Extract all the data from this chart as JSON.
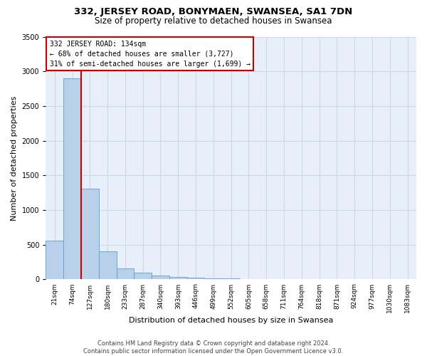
{
  "title": "332, JERSEY ROAD, BONYMAEN, SWANSEA, SA1 7DN",
  "subtitle": "Size of property relative to detached houses in Swansea",
  "xlabel": "Distribution of detached houses by size in Swansea",
  "ylabel": "Number of detached properties",
  "bar_color": "#b8d0ea",
  "bar_edge_color": "#5a9fd4",
  "grid_color": "#c8d8ee",
  "background_color": "#e8eff8",
  "categories": [
    "21sqm",
    "74sqm",
    "127sqm",
    "180sqm",
    "233sqm",
    "287sqm",
    "340sqm",
    "393sqm",
    "446sqm",
    "499sqm",
    "552sqm",
    "605sqm",
    "658sqm",
    "711sqm",
    "764sqm",
    "818sqm",
    "871sqm",
    "924sqm",
    "977sqm",
    "1030sqm",
    "1083sqm"
  ],
  "values": [
    560,
    2900,
    1310,
    410,
    155,
    95,
    60,
    35,
    22,
    15,
    10,
    8,
    6,
    5,
    4,
    3,
    2,
    2,
    1,
    1,
    0
  ],
  "ylim": [
    0,
    3500
  ],
  "yticks": [
    0,
    500,
    1000,
    1500,
    2000,
    2500,
    3000,
    3500
  ],
  "vline_x_index": 2,
  "property_label": "332 JERSEY ROAD: 134sqm",
  "annotation_line1": "← 68% of detached houses are smaller (3,727)",
  "annotation_line2": "31% of semi-detached houses are larger (1,699) →",
  "annotation_box_color": "#ffffff",
  "annotation_border_color": "#cc0000",
  "vline_color": "#cc0000",
  "footer_line1": "Contains HM Land Registry data © Crown copyright and database right 2024.",
  "footer_line2": "Contains public sector information licensed under the Open Government Licence v3.0.",
  "title_fontsize": 9.5,
  "subtitle_fontsize": 8.5,
  "tick_fontsize": 6.5,
  "ylabel_fontsize": 8,
  "xlabel_fontsize": 8,
  "annotation_fontsize": 7,
  "footer_fontsize": 6
}
